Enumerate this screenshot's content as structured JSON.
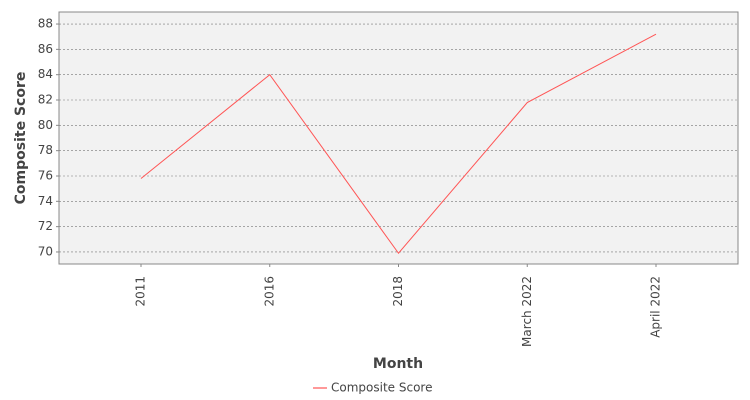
{
  "chart_data": {
    "type": "line",
    "x_label": "Month",
    "y_label": "Composite Score",
    "categories": [
      "2011",
      "2016",
      "2018",
      "March 2022",
      "April 2022"
    ],
    "series": [
      {
        "name": "Composite Score",
        "color": "#ff5555",
        "values": [
          75.8,
          84.0,
          69.9,
          81.8,
          87.2
        ]
      }
    ],
    "ylim": [
      69.05,
      88.95
    ],
    "yticks": [
      70,
      72,
      74,
      76,
      78,
      80,
      82,
      84,
      86,
      88
    ],
    "grid": true,
    "legend": "bottom"
  }
}
